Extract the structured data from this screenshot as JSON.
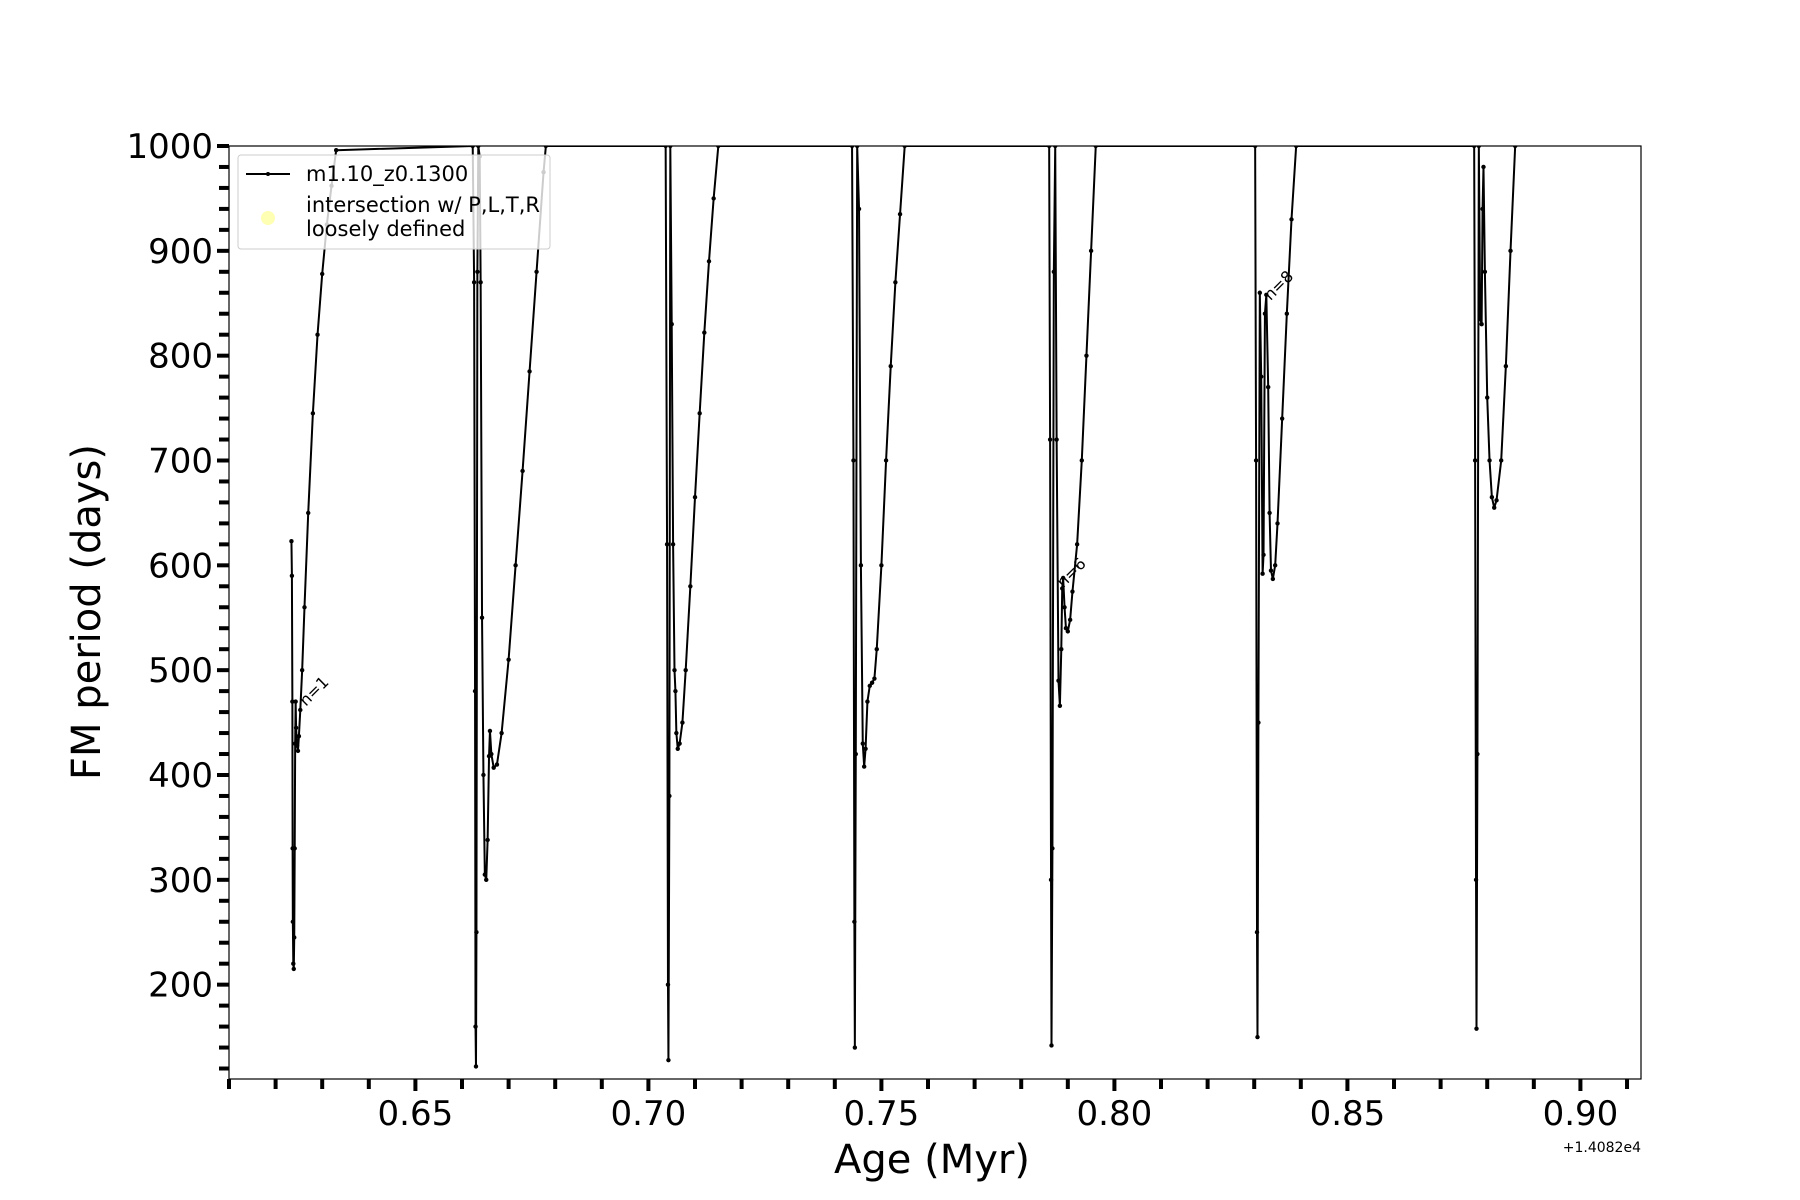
{
  "chart_data": {
    "type": "line",
    "xlabel": "Age (Myr)",
    "ylabel": "FM period (days)",
    "x_offset_label": "+1.4082e4",
    "xlim": [
      0.61,
      0.913
    ],
    "ylim": [
      110,
      1000
    ],
    "x_major_ticks": [
      0.65,
      0.7,
      0.75,
      0.8,
      0.85,
      0.9
    ],
    "x_tick_labels": [
      "0.65",
      "0.70",
      "0.75",
      "0.80",
      "0.85",
      "0.90"
    ],
    "x_minor_step": 0.01,
    "y_major_ticks": [
      200,
      300,
      400,
      500,
      600,
      700,
      800,
      900,
      1000
    ],
    "y_tick_labels": [
      "200",
      "300",
      "400",
      "500",
      "600",
      "700",
      "800",
      "900",
      "1000"
    ],
    "y_minor_step": 20,
    "grid": false,
    "legend": {
      "placement": "top-left",
      "entries": [
        {
          "label": "m1.10_z0.1300",
          "style": "line-with-dots",
          "color": "#000000"
        },
        {
          "label_line1": "intersection w/ P,L,T,R",
          "label_line2": "loosely defined",
          "style": "dot",
          "color": "#ffffb3"
        }
      ]
    },
    "annotations": [
      {
        "text": "n=1",
        "x": 0.6265,
        "y": 465,
        "rotation": -45
      },
      {
        "text": "n=6",
        "x": 0.789,
        "y": 578,
        "rotation": -45
      },
      {
        "text": "n=8",
        "x": 0.8335,
        "y": 852,
        "rotation": -45
      }
    ],
    "series": [
      {
        "name": "m1.10_z0.1300",
        "color": "#000000",
        "marker": "dot",
        "points": [
          [
            0.6234,
            623
          ],
          [
            0.6235,
            590
          ],
          [
            0.6236,
            470
          ],
          [
            0.62365,
            330
          ],
          [
            0.6237,
            260
          ],
          [
            0.6238,
            220
          ],
          [
            0.6239,
            215
          ],
          [
            0.624,
            245
          ],
          [
            0.6241,
            330
          ],
          [
            0.6242,
            430
          ],
          [
            0.6243,
            470
          ],
          [
            0.6244,
            445
          ],
          [
            0.6246,
            428
          ],
          [
            0.6248,
            423
          ],
          [
            0.625,
            437
          ],
          [
            0.6253,
            462
          ],
          [
            0.6257,
            500
          ],
          [
            0.6262,
            560
          ],
          [
            0.627,
            650
          ],
          [
            0.628,
            745
          ],
          [
            0.629,
            820
          ],
          [
            0.63,
            878
          ],
          [
            0.631,
            925
          ],
          [
            0.632,
            962
          ],
          [
            0.633,
            996
          ],
          [
            0.6623,
            1000
          ],
          [
            0.6626,
            870
          ],
          [
            0.6628,
            480
          ],
          [
            0.6629,
            160
          ],
          [
            0.663,
            122
          ],
          [
            0.6631,
            250
          ],
          [
            0.6633,
            880
          ],
          [
            0.6635,
            1000
          ],
          [
            0.6638,
            990
          ],
          [
            0.664,
            870
          ],
          [
            0.6643,
            550
          ],
          [
            0.6646,
            400
          ],
          [
            0.6649,
            305
          ],
          [
            0.6652,
            300
          ],
          [
            0.6655,
            338
          ],
          [
            0.6658,
            418
          ],
          [
            0.666,
            442
          ],
          [
            0.6663,
            420
          ],
          [
            0.6668,
            407
          ],
          [
            0.6675,
            410
          ],
          [
            0.6685,
            440
          ],
          [
            0.67,
            510
          ],
          [
            0.6715,
            600
          ],
          [
            0.673,
            690
          ],
          [
            0.6745,
            785
          ],
          [
            0.676,
            880
          ],
          [
            0.6775,
            975
          ],
          [
            0.678,
            1000
          ],
          [
            0.7037,
            1000
          ],
          [
            0.704,
            620
          ],
          [
            0.7042,
            200
          ],
          [
            0.7043,
            128
          ],
          [
            0.7045,
            380
          ],
          [
            0.7047,
            1000
          ],
          [
            0.705,
            830
          ],
          [
            0.7053,
            620
          ],
          [
            0.7056,
            500
          ],
          [
            0.7058,
            480
          ],
          [
            0.706,
            440
          ],
          [
            0.7063,
            425
          ],
          [
            0.7067,
            430
          ],
          [
            0.7073,
            450
          ],
          [
            0.708,
            500
          ],
          [
            0.709,
            580
          ],
          [
            0.71,
            665
          ],
          [
            0.711,
            745
          ],
          [
            0.712,
            822
          ],
          [
            0.713,
            890
          ],
          [
            0.714,
            950
          ],
          [
            0.715,
            1000
          ],
          [
            0.7437,
            1000
          ],
          [
            0.744,
            700
          ],
          [
            0.7442,
            260
          ],
          [
            0.7443,
            140
          ],
          [
            0.7445,
            420
          ],
          [
            0.7448,
            1000
          ],
          [
            0.7452,
            940
          ],
          [
            0.7456,
            600
          ],
          [
            0.746,
            430
          ],
          [
            0.7463,
            408
          ],
          [
            0.7466,
            425
          ],
          [
            0.747,
            470
          ],
          [
            0.7475,
            485
          ],
          [
            0.748,
            488
          ],
          [
            0.7485,
            492
          ],
          [
            0.749,
            520
          ],
          [
            0.75,
            600
          ],
          [
            0.751,
            700
          ],
          [
            0.752,
            790
          ],
          [
            0.753,
            870
          ],
          [
            0.754,
            935
          ],
          [
            0.755,
            1000
          ],
          [
            0.786,
            1000
          ],
          [
            0.7862,
            720
          ],
          [
            0.7864,
            300
          ],
          [
            0.7865,
            142
          ],
          [
            0.7867,
            330
          ],
          [
            0.787,
            880
          ],
          [
            0.7873,
            1000
          ],
          [
            0.7876,
            720
          ],
          [
            0.788,
            490
          ],
          [
            0.7883,
            466
          ],
          [
            0.7886,
            520
          ],
          [
            0.7888,
            578
          ],
          [
            0.789,
            588
          ],
          [
            0.7893,
            560
          ],
          [
            0.7896,
            540
          ],
          [
            0.79,
            537
          ],
          [
            0.7905,
            548
          ],
          [
            0.791,
            575
          ],
          [
            0.792,
            620
          ],
          [
            0.793,
            700
          ],
          [
            0.794,
            800
          ],
          [
            0.795,
            900
          ],
          [
            0.796,
            1000
          ],
          [
            0.8302,
            1000
          ],
          [
            0.8304,
            700
          ],
          [
            0.8306,
            250
          ],
          [
            0.8307,
            150
          ],
          [
            0.8309,
            450
          ],
          [
            0.8312,
            860
          ],
          [
            0.8315,
            780
          ],
          [
            0.8318,
            592
          ],
          [
            0.832,
            610
          ],
          [
            0.8323,
            840
          ],
          [
            0.8326,
            858
          ],
          [
            0.833,
            770
          ],
          [
            0.8333,
            650
          ],
          [
            0.8336,
            595
          ],
          [
            0.834,
            587
          ],
          [
            0.8345,
            600
          ],
          [
            0.835,
            640
          ],
          [
            0.836,
            740
          ],
          [
            0.837,
            840
          ],
          [
            0.838,
            930
          ],
          [
            0.839,
            1000
          ],
          [
            0.8772,
            1000
          ],
          [
            0.8774,
            700
          ],
          [
            0.8776,
            300
          ],
          [
            0.8777,
            158
          ],
          [
            0.8779,
            420
          ],
          [
            0.8782,
            1000
          ],
          [
            0.8785,
            835
          ],
          [
            0.8788,
            830
          ],
          [
            0.879,
            940
          ],
          [
            0.8792,
            980
          ],
          [
            0.8795,
            880
          ],
          [
            0.88,
            760
          ],
          [
            0.8805,
            700
          ],
          [
            0.881,
            665
          ],
          [
            0.8815,
            655
          ],
          [
            0.882,
            662
          ],
          [
            0.883,
            700
          ],
          [
            0.884,
            790
          ],
          [
            0.885,
            900
          ],
          [
            0.886,
            1000
          ]
        ]
      }
    ]
  }
}
